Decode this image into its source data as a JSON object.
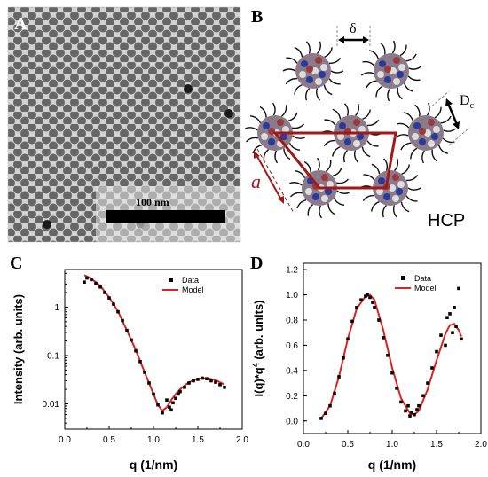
{
  "panels": {
    "A": {
      "letter": "A",
      "scale_bar_label": "100 nm"
    },
    "B": {
      "letter": "B",
      "delta_label": "δ",
      "diameter_label": "D",
      "diameter_subscript": "c",
      "lattice_label": "a",
      "lattice_type": "HCP"
    },
    "C": {
      "letter": "C"
    },
    "D": {
      "letter": "D"
    }
  },
  "colors": {
    "model_line": "#e02020",
    "data_marker": "#000000",
    "lattice_lines": "#a01818",
    "particle_core": "#2a3a9a",
    "ligand": "#111111"
  },
  "chart_data": [
    {
      "panel": "C",
      "type": "scatter",
      "title": "",
      "xlabel": "q (1/nm)",
      "ylabel": "Intensity (arb. units)",
      "xlim": [
        0.0,
        2.0
      ],
      "ylim": [
        0.003,
        6
      ],
      "yscale": "log",
      "xticks": [
        "0.0",
        "0.5",
        "1.0",
        "1.5",
        "2.0"
      ],
      "yticks": [
        "1",
        "0.1",
        "0.01"
      ],
      "ytick_values": [
        1,
        0.1,
        0.01
      ],
      "legend": {
        "position": "top-right",
        "entries": [
          "Data",
          "Model"
        ]
      },
      "series": [
        {
          "name": "Data",
          "style": "square-markers",
          "x": [
            0.22,
            0.25,
            0.3,
            0.35,
            0.4,
            0.45,
            0.5,
            0.55,
            0.6,
            0.65,
            0.7,
            0.75,
            0.8,
            0.85,
            0.9,
            0.95,
            1.0,
            1.05,
            1.1,
            1.15,
            1.18,
            1.2,
            1.22,
            1.25,
            1.28,
            1.3,
            1.35,
            1.4,
            1.45,
            1.5,
            1.55,
            1.6,
            1.65,
            1.7,
            1.75,
            1.8
          ],
          "y": [
            3.3,
            4.0,
            3.7,
            3.1,
            2.6,
            2.0,
            1.55,
            1.15,
            0.8,
            0.53,
            0.33,
            0.21,
            0.125,
            0.075,
            0.045,
            0.027,
            0.016,
            0.0095,
            0.0065,
            0.012,
            0.0085,
            0.0075,
            0.0105,
            0.013,
            0.016,
            0.018,
            0.022,
            0.027,
            0.03,
            0.032,
            0.034,
            0.033,
            0.03,
            0.028,
            0.025,
            0.022
          ]
        },
        {
          "name": "Model",
          "style": "line",
          "x": [
            0.22,
            0.3,
            0.4,
            0.5,
            0.6,
            0.7,
            0.8,
            0.9,
            1.0,
            1.05,
            1.1,
            1.15,
            1.2,
            1.25,
            1.3,
            1.35,
            1.4,
            1.5,
            1.6,
            1.7,
            1.8
          ],
          "y": [
            4.6,
            3.9,
            2.75,
            1.6,
            0.82,
            0.33,
            0.13,
            0.045,
            0.016,
            0.0095,
            0.0072,
            0.0085,
            0.012,
            0.016,
            0.02,
            0.024,
            0.028,
            0.033,
            0.034,
            0.031,
            0.025
          ]
        }
      ]
    },
    {
      "panel": "D",
      "type": "scatter",
      "title": "",
      "xlabel": "q (1/nm)",
      "ylabel": "I(q)*q",
      "ylabel_superscript": "4",
      "ylabel_suffix": " (arb. units)",
      "xlim": [
        0.0,
        2.0
      ],
      "ylim": [
        -0.1,
        1.25
      ],
      "xticks": [
        "0.0",
        "0.5",
        "1.0",
        "1.5",
        "2.0"
      ],
      "yticks": [
        "0.0",
        "0.2",
        "0.4",
        "0.6",
        "0.8",
        "1.0",
        "1.2"
      ],
      "ytick_values": [
        0.0,
        0.2,
        0.4,
        0.6,
        0.8,
        1.0,
        1.2
      ],
      "legend": {
        "position": "top-right",
        "entries": [
          "Data",
          "Model"
        ]
      },
      "series": [
        {
          "name": "Data",
          "style": "square-markers",
          "x": [
            0.2,
            0.25,
            0.3,
            0.35,
            0.4,
            0.45,
            0.5,
            0.55,
            0.6,
            0.65,
            0.7,
            0.72,
            0.75,
            0.78,
            0.8,
            0.85,
            0.9,
            0.95,
            1.0,
            1.05,
            1.1,
            1.15,
            1.18,
            1.2,
            1.22,
            1.25,
            1.28,
            1.3,
            1.35,
            1.4,
            1.45,
            1.5,
            1.55,
            1.6,
            1.62,
            1.65,
            1.68,
            1.7,
            1.72,
            1.75,
            1.78
          ],
          "y": [
            0.02,
            0.06,
            0.12,
            0.22,
            0.35,
            0.5,
            0.65,
            0.79,
            0.9,
            0.96,
            0.99,
            1.0,
            0.98,
            0.94,
            0.9,
            0.8,
            0.66,
            0.52,
            0.38,
            0.26,
            0.15,
            0.08,
            0.12,
            0.04,
            0.07,
            0.05,
            0.09,
            0.12,
            0.2,
            0.3,
            0.42,
            0.55,
            0.68,
            0.6,
            0.82,
            0.85,
            0.7,
            0.9,
            0.75,
            1.05,
            0.65
          ]
        },
        {
          "name": "Model",
          "style": "line",
          "x": [
            0.2,
            0.3,
            0.4,
            0.5,
            0.6,
            0.7,
            0.75,
            0.8,
            0.9,
            1.0,
            1.1,
            1.2,
            1.25,
            1.3,
            1.4,
            1.5,
            1.6,
            1.65,
            1.7,
            1.75,
            1.78
          ],
          "y": [
            0.02,
            0.12,
            0.35,
            0.65,
            0.89,
            0.99,
            1.0,
            0.96,
            0.72,
            0.42,
            0.18,
            0.06,
            0.05,
            0.08,
            0.25,
            0.48,
            0.69,
            0.76,
            0.77,
            0.72,
            0.67
          ]
        }
      ]
    }
  ]
}
